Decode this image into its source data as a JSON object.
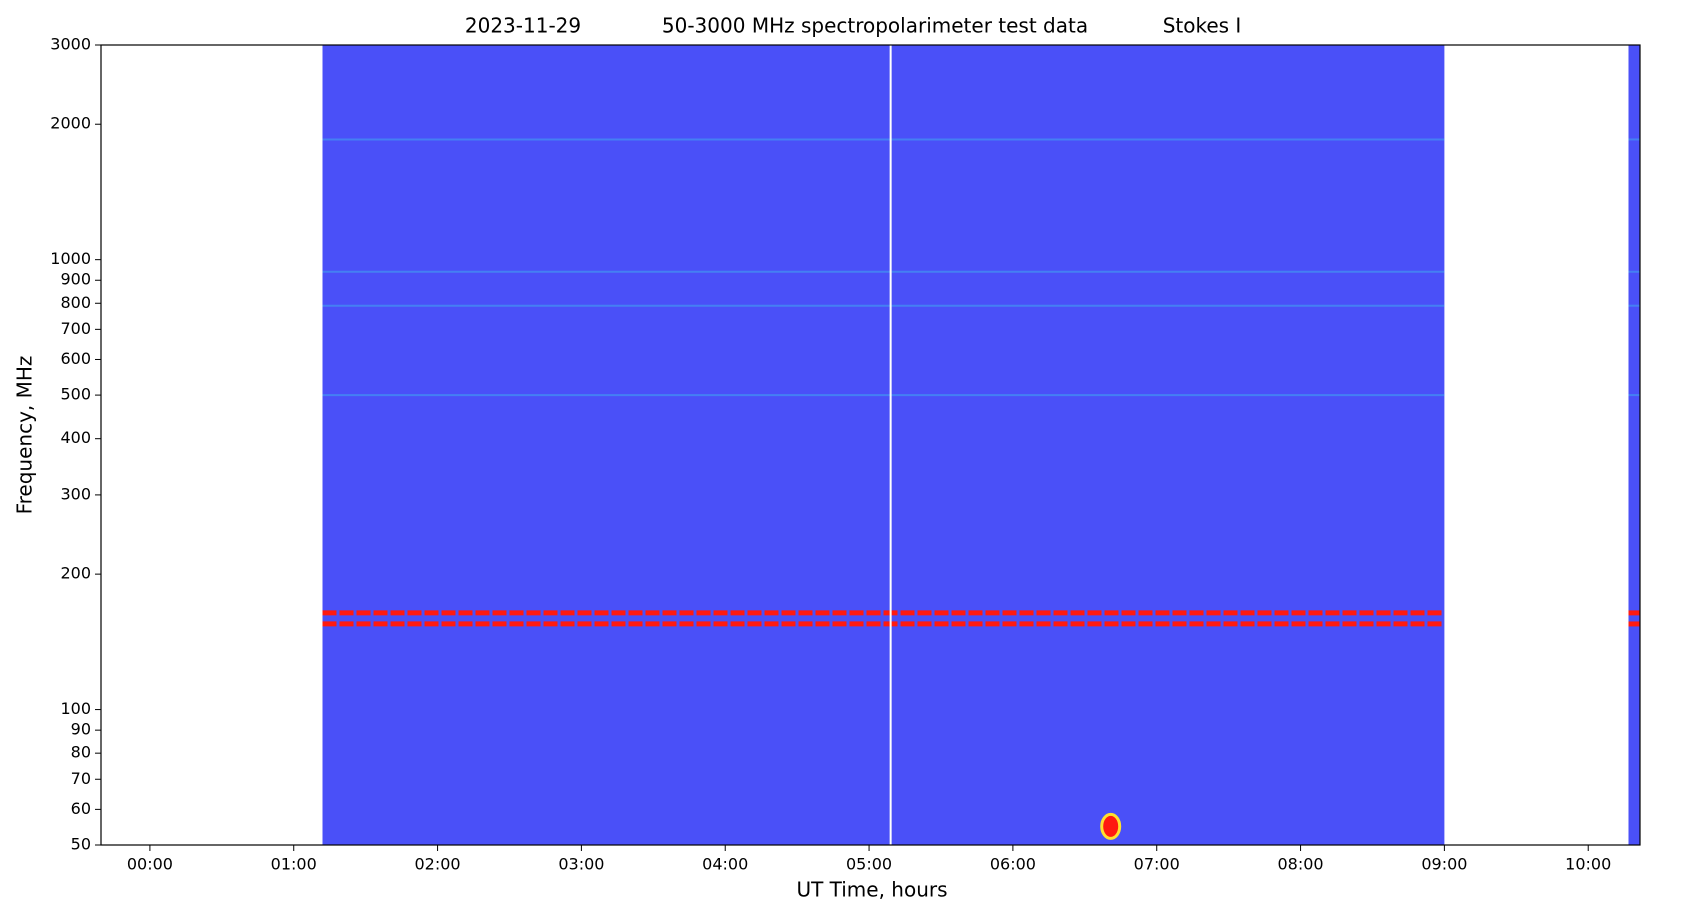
{
  "chart_data": {
    "type": "spectrogram",
    "title_parts": [
      "2023-11-29",
      "50-3000 MHz spectropolarimeter test data",
      "Stokes I"
    ],
    "x_label": "UT Time, hours",
    "y_label": "Frequency, MHz",
    "xlim": [
      -0.34,
      10.36
    ],
    "xticks": [
      {
        "value": 0,
        "label": "00:00"
      },
      {
        "value": 1,
        "label": "01:00"
      },
      {
        "value": 2,
        "label": "02:00"
      },
      {
        "value": 3,
        "label": "03:00"
      },
      {
        "value": 4,
        "label": "04:00"
      },
      {
        "value": 5,
        "label": "05:00"
      },
      {
        "value": 6,
        "label": "06:00"
      },
      {
        "value": 7,
        "label": "07:00"
      },
      {
        "value": 8,
        "label": "08:00"
      },
      {
        "value": 9,
        "label": "09:00"
      },
      {
        "value": 10,
        "label": "10:00"
      }
    ],
    "ylim": [
      50,
      3000
    ],
    "log_y": true,
    "yticks": [
      50,
      60,
      70,
      80,
      90,
      100,
      200,
      300,
      400,
      500,
      600,
      700,
      800,
      900,
      1000,
      2000,
      3000
    ],
    "background_color": "#4a50f8",
    "intervals": [
      [
        1.2,
        9.0
      ],
      [
        10.28,
        10.36
      ]
    ],
    "gap_times": [
      5.15
    ],
    "rfi_lines": [
      164,
      155
    ],
    "rfi_color": "#ff1a10",
    "burst": {
      "x": 6.68,
      "y": 55
    },
    "faint_lines": [
      940,
      790,
      500,
      1850
    ]
  }
}
